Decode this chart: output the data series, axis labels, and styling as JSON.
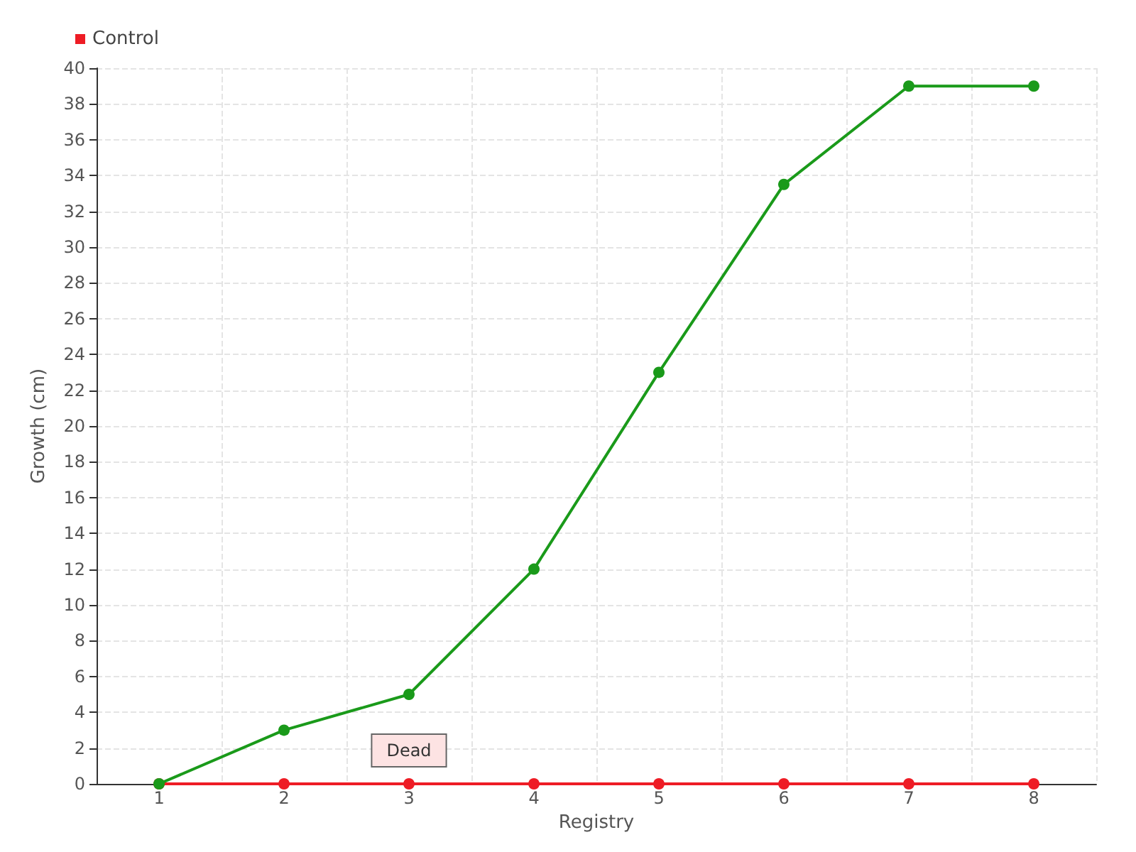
{
  "chart_data": {
    "type": "line",
    "categories": [
      "1",
      "2",
      "3",
      "4",
      "5",
      "6",
      "7",
      "8"
    ],
    "series": [
      {
        "color": "#1a9a1a",
        "values": [
          0,
          3,
          5,
          12,
          23,
          33.5,
          39,
          39
        ]
      },
      {
        "name": "Control",
        "color": "#ee1c25",
        "values": [
          0,
          0,
          0,
          0,
          0,
          0,
          0,
          0
        ]
      }
    ],
    "xlabel": "Registry",
    "ylabel": "Growth (cm)",
    "ylim": [
      0,
      40
    ],
    "yticks": [
      0,
      2,
      4,
      6,
      8,
      10,
      12,
      14,
      16,
      18,
      20,
      22,
      24,
      26,
      28,
      30,
      32,
      34,
      36,
      38,
      40
    ],
    "annotations": [
      {
        "text": "Dead",
        "x": "3",
        "y": 0
      }
    ],
    "grid": true,
    "legend": "top left",
    "marker": "circle",
    "line_style": "solid"
  }
}
